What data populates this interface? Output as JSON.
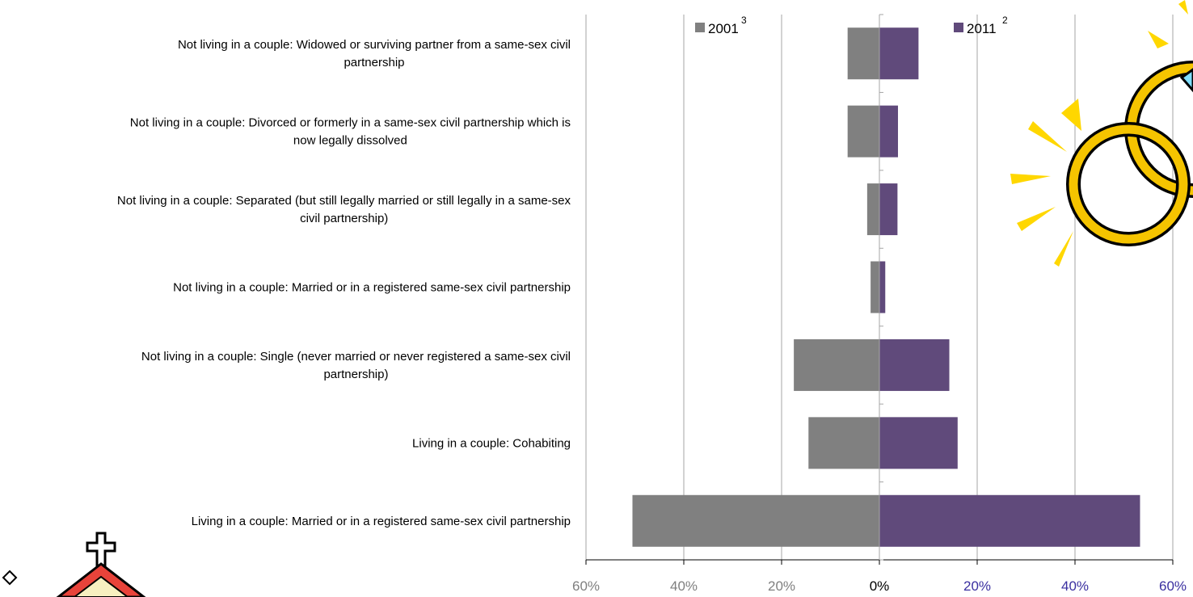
{
  "chart_data": {
    "type": "bar",
    "orientation": "horizontal-diverging",
    "categories": [
      [
        "Not living in a couple: Widowed or surviving partner from a same-sex civil",
        "partnership"
      ],
      [
        "Not living in a couple: Divorced or formerly in a same-sex civil partnership which is",
        "now legally dissolved"
      ],
      [
        "Not living in a couple: Separated (but still legally married or still legally in a same-sex",
        "civil partnership)"
      ],
      [
        "Not living in a couple: Married or in a registered same-sex civil partnership"
      ],
      [
        "Not living in a couple: Single (never married or never registered a same-sex civil",
        "partnership)"
      ],
      [
        "Living in a couple: Cohabiting"
      ],
      [
        "Living in a couple: Married or in a registered same-sex civil partnership"
      ]
    ],
    "series": [
      {
        "name": "2001",
        "superscript": "3",
        "color": "#808080",
        "side": "left",
        "values": [
          6.5,
          6.5,
          2.5,
          1.8,
          17.5,
          14.5,
          50.5
        ]
      },
      {
        "name": "2011",
        "superscript": "2",
        "color": "#604a7b",
        "side": "right",
        "values": [
          8.0,
          3.8,
          3.7,
          1.2,
          14.3,
          16.0,
          53.3
        ]
      }
    ],
    "x_ticks": [
      {
        "label": "60%",
        "value": -60,
        "color": "#7f7f7f"
      },
      {
        "label": "40%",
        "value": -40,
        "color": "#7f7f7f"
      },
      {
        "label": "20%",
        "value": -20,
        "color": "#7f7f7f"
      },
      {
        "label": "0%",
        "value": 0,
        "color": "#000000"
      },
      {
        "label": "20%",
        "value": 20,
        "color": "#3a2fa0"
      },
      {
        "label": "40%",
        "value": 40,
        "color": "#3a2fa0"
      },
      {
        "label": "60%",
        "value": 60,
        "color": "#3a2fa0"
      }
    ],
    "xlim": [
      -60,
      60
    ],
    "grid": true,
    "legend_position": "top"
  },
  "decorations": {
    "rings_clipart": "wedding-rings-icon",
    "church_clipart": "church-icon",
    "corner_mark": "diamond-icon"
  }
}
